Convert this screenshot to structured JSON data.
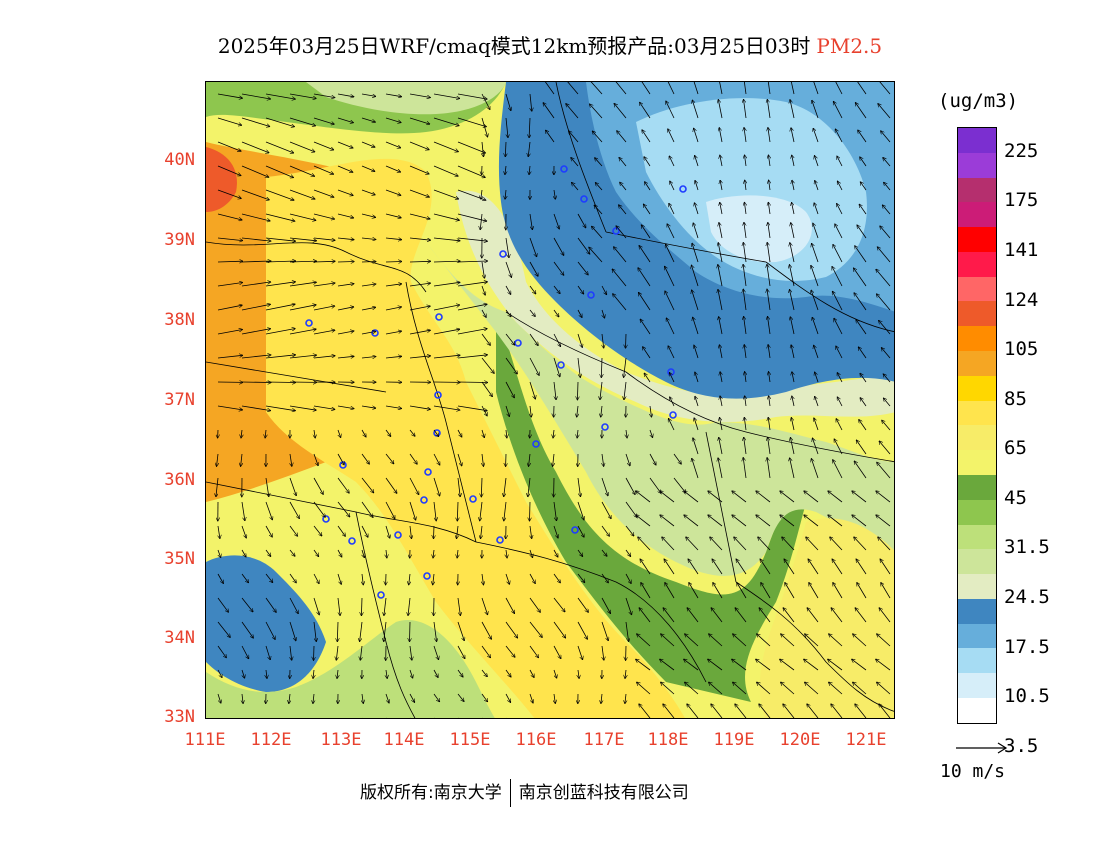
{
  "title": {
    "main": "2025年03月25日WRF/cmaq模式12km预报产品:03月25日03时",
    "pollutant": "PM2.5"
  },
  "axes": {
    "lat_labels": [
      "40N",
      "39N",
      "38N",
      "37N",
      "36N",
      "35N",
      "34N",
      "33N"
    ],
    "lon_labels": [
      "111E",
      "112E",
      "113E",
      "114E",
      "115E",
      "116E",
      "117E",
      "118E",
      "119E",
      "120E",
      "121E"
    ]
  },
  "colorbar": {
    "unit": "(ug/m3)",
    "labels": [
      "225",
      "175",
      "141",
      "124",
      "105",
      "85",
      "65",
      "45",
      "31.5",
      "24.5",
      "17.5",
      "10.5",
      "3.5"
    ],
    "colors": [
      "#7b2fd0",
      "#9b3cd8",
      "#b52f6e",
      "#cc1c77",
      "#ff0000",
      "#ff1a4a",
      "#ff6666",
      "#ee5a2a",
      "#ff8c00",
      "#f5a623",
      "#ffd700",
      "#ffe44d",
      "#f7ec68",
      "#f3f36a",
      "#6aa83c",
      "#8ec64e",
      "#bde07a",
      "#cde59a",
      "#e3ecc2",
      "#3f86c0",
      "#66aedb",
      "#a6dcf3",
      "#d6eef9",
      "#ffffff"
    ]
  },
  "vector_reference": {
    "label": "10 m/s"
  },
  "copyright": {
    "left": "版权所有:南京大学",
    "right": "南京创蓝科技有限公司"
  },
  "station_markers": "blue-circle-icon",
  "wind_vectors": "arrow-icon"
}
